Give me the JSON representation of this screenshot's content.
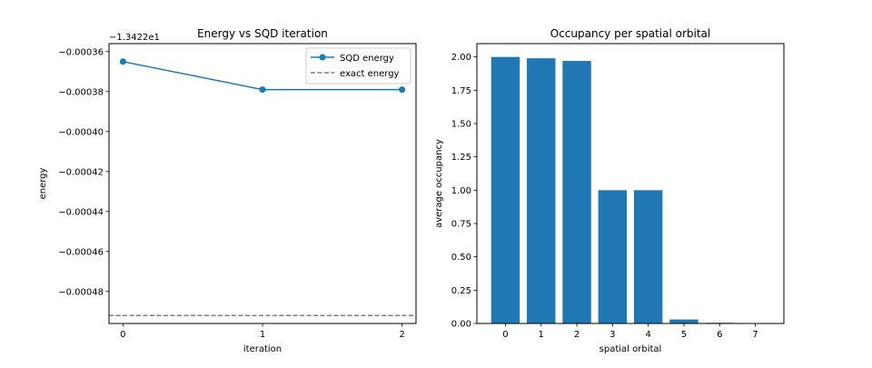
{
  "chart_data": [
    {
      "type": "line",
      "title": "Energy vs SQD iteration",
      "xlabel": "iteration",
      "ylabel": "energy",
      "offset_text": "−1.3422e1",
      "xlim": [
        -0.1,
        2.1
      ],
      "ylim": [
        -0.000496,
        -0.000356
      ],
      "x_ticks": [
        0,
        1,
        2
      ],
      "x_tick_labels": [
        "0",
        "1",
        "2"
      ],
      "y_ticks": [
        -0.00036,
        -0.00038,
        -0.0004,
        -0.00042,
        -0.00044,
        -0.00046,
        -0.00048
      ],
      "y_tick_labels": [
        "−0.00036",
        "−0.00038",
        "−0.00040",
        "−0.00042",
        "−0.00044",
        "−0.00046",
        "−0.00048"
      ],
      "grid": false,
      "legend_position": "top-right",
      "series": [
        {
          "name": "SQD energy",
          "x": [
            0,
            1,
            2
          ],
          "values": [
            -0.000365,
            -0.000379,
            -0.000379
          ],
          "color": "#1f77b4",
          "style": "line-marker"
        }
      ],
      "hlines": [
        {
          "name": "exact energy",
          "value": -0.000492,
          "color": "#808080",
          "style": "dashed"
        }
      ]
    },
    {
      "type": "bar",
      "title": "Occupancy per spatial orbital",
      "xlabel": "spatial orbital",
      "ylabel": "average occupancy",
      "categories": [
        "0",
        "1",
        "2",
        "3",
        "4",
        "5",
        "6",
        "7"
      ],
      "values": [
        2.0,
        1.99,
        1.97,
        1.0,
        1.0,
        0.03,
        0.005,
        0.001
      ],
      "xlim": [
        -0.8,
        7.8
      ],
      "ylim": [
        0,
        2.1
      ],
      "y_ticks": [
        0,
        0.25,
        0.5,
        0.75,
        1.0,
        1.25,
        1.5,
        1.75,
        2.0
      ],
      "y_tick_labels": [
        "0.00",
        "0.25",
        "0.50",
        "0.75",
        "1.00",
        "1.25",
        "1.50",
        "1.75",
        "2.00"
      ],
      "grid": false,
      "color": "#1f77b4"
    }
  ]
}
